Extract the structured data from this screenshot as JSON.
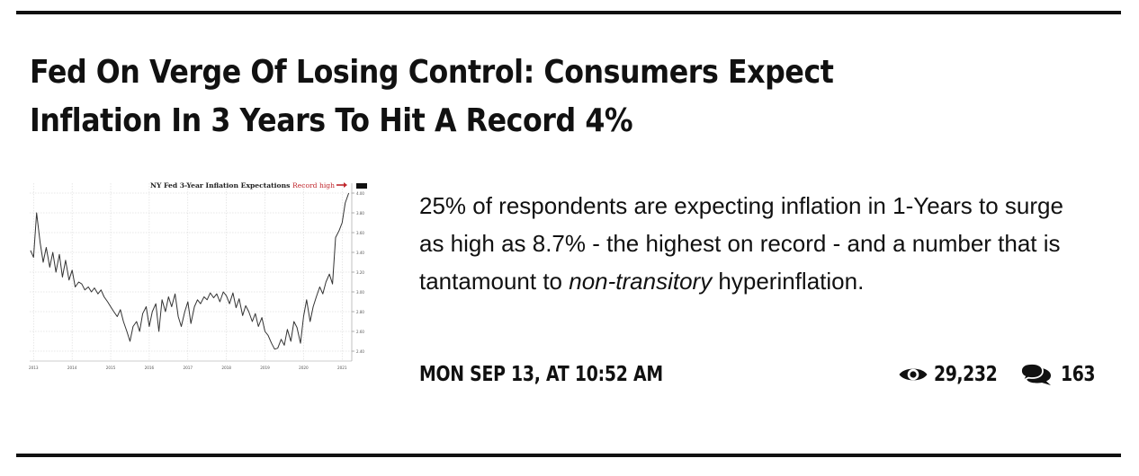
{
  "article": {
    "headline": "Fed On Verge Of Losing Control: Consumers Expect Inflation In 3 Years To Hit A Record 4%",
    "teaser_before": "25% of respondents are expecting inflation in 1-Years to surge as high as 8.7% - the highest on record - and a number that is tantamount to ",
    "teaser_em": "non-transitory",
    "teaser_after": " hyperinflation.",
    "date": "MON SEP 13, AT 10:52 AM",
    "views": "29,232",
    "comments": "163",
    "icons": {
      "views": "eye-icon",
      "comments": "comments-icon"
    }
  },
  "chart_data": {
    "type": "line",
    "title": "NY Fed 3-Year Inflation Expectations",
    "annotation": "Record high",
    "x_tick_labels": [
      "2013",
      "2014",
      "2015",
      "2016",
      "2017",
      "2018",
      "2019",
      "2020",
      "2021"
    ],
    "y_tick_labels": [
      "2.40",
      "2.60",
      "2.80",
      "3.00",
      "3.20",
      "3.40",
      "3.60",
      "3.80",
      "4.00"
    ],
    "ylim": [
      2.3,
      4.1
    ],
    "xlim": [
      2013.4,
      2021.75
    ],
    "grid": true,
    "line_color": "#333333",
    "annotation_color": "#c0272d",
    "series": [
      {
        "x": [
          2013.42,
          2013.5,
          2013.58,
          2013.67,
          2013.75,
          2013.83,
          2013.92,
          2014.0,
          2014.08,
          2014.17,
          2014.25,
          2014.33,
          2014.42,
          2014.5,
          2014.58,
          2014.67,
          2014.75,
          2014.83,
          2014.92,
          2015.0,
          2015.08,
          2015.17,
          2015.25,
          2015.33,
          2015.42,
          2015.5,
          2015.58,
          2015.67,
          2015.75,
          2015.83,
          2015.92,
          2016.0,
          2016.08,
          2016.17,
          2016.25,
          2016.33,
          2016.42,
          2016.5,
          2016.58,
          2016.67,
          2016.75,
          2016.83,
          2016.92,
          2017.0,
          2017.08,
          2017.17,
          2017.25,
          2017.33,
          2017.42,
          2017.5,
          2017.58,
          2017.67,
          2017.75,
          2017.83,
          2017.92,
          2018.0,
          2018.08,
          2018.17,
          2018.25,
          2018.33,
          2018.42,
          2018.5,
          2018.58,
          2018.67,
          2018.75,
          2018.83,
          2018.92,
          2019.0,
          2019.08,
          2019.17,
          2019.25,
          2019.33,
          2019.42,
          2019.5,
          2019.58,
          2019.67,
          2019.75,
          2019.83,
          2019.92,
          2020.0,
          2020.08,
          2020.17,
          2020.25,
          2020.33,
          2020.42,
          2020.5,
          2020.58,
          2020.67,
          2020.75,
          2020.83,
          2020.92,
          2021.0,
          2021.08,
          2021.17,
          2021.25,
          2021.33,
          2021.42,
          2021.5,
          2021.58,
          2021.67
        ],
        "y": [
          3.42,
          3.35,
          3.8,
          3.5,
          3.3,
          3.45,
          3.25,
          3.4,
          3.2,
          3.38,
          3.15,
          3.32,
          3.12,
          3.22,
          3.05,
          3.1,
          3.08,
          3.02,
          3.05,
          3.0,
          3.04,
          2.98,
          3.02,
          2.95,
          2.9,
          2.85,
          2.8,
          2.75,
          2.82,
          2.7,
          2.6,
          2.5,
          2.65,
          2.7,
          2.6,
          2.78,
          2.85,
          2.65,
          2.8,
          2.88,
          2.6,
          2.92,
          2.8,
          2.95,
          2.85,
          2.98,
          2.75,
          2.65,
          2.8,
          2.9,
          2.68,
          2.85,
          2.92,
          2.88,
          2.95,
          2.92,
          2.99,
          2.94,
          2.98,
          2.9,
          3.0,
          2.96,
          2.88,
          2.99,
          2.84,
          2.93,
          2.76,
          2.86,
          2.8,
          2.7,
          2.78,
          2.65,
          2.74,
          2.6,
          2.56,
          2.48,
          2.42,
          2.43,
          2.52,
          2.46,
          2.62,
          2.5,
          2.7,
          2.64,
          2.48,
          2.75,
          2.92,
          2.7,
          2.85,
          2.95,
          3.05,
          2.98,
          3.1,
          3.18,
          3.08,
          3.55,
          3.62,
          3.7,
          3.9,
          4.0
        ]
      }
    ]
  }
}
